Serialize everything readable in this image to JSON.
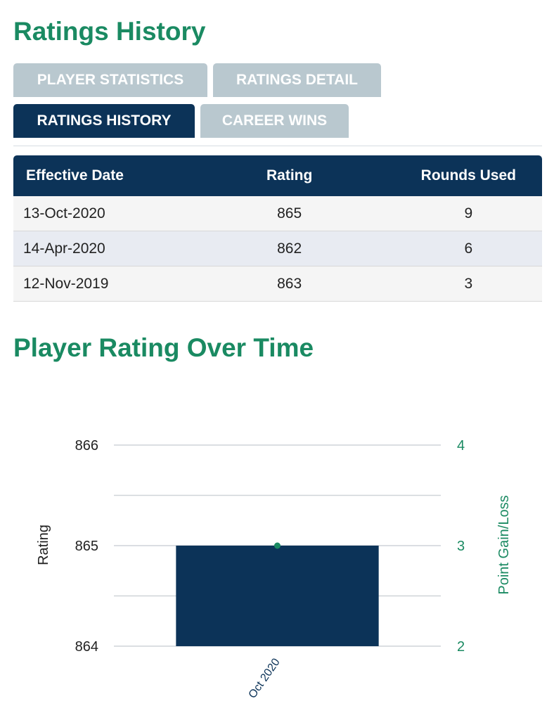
{
  "page": {
    "title": "Ratings History",
    "chart_title": "Player Rating Over Time"
  },
  "tabs": [
    {
      "label": "PLAYER STATISTICS",
      "active": false
    },
    {
      "label": "RATINGS DETAIL",
      "active": false
    },
    {
      "label": "RATINGS HISTORY",
      "active": true
    },
    {
      "label": "CAREER WINS",
      "active": false
    }
  ],
  "table": {
    "headers": [
      "Effective Date",
      "Rating",
      "Rounds Used"
    ],
    "rows": [
      [
        "13-Oct-2020",
        "865",
        "9"
      ],
      [
        "14-Apr-2020",
        "862",
        "6"
      ],
      [
        "12-Nov-2019",
        "863",
        "3"
      ]
    ]
  },
  "colors": {
    "accent": "#1a8a62",
    "navy": "#0c3358",
    "tab_inactive": "#b9c8cf"
  },
  "chart_data": {
    "type": "bar",
    "categories": [
      "Oct 2020"
    ],
    "series": [
      {
        "axis": "left",
        "kind": "bar",
        "values": [
          865
        ],
        "color": "#0c3358"
      },
      {
        "axis": "right",
        "kind": "line",
        "values": [
          3
        ],
        "color": "#1a8a62"
      }
    ],
    "ylabel": "Rating",
    "y2label": "Point Gain/Loss",
    "ylim": [
      864,
      866
    ],
    "y2lim": [
      2,
      4
    ],
    "yticks": [
      864,
      865,
      866
    ],
    "y2ticks": [
      2,
      3,
      4
    ],
    "grid": true
  }
}
